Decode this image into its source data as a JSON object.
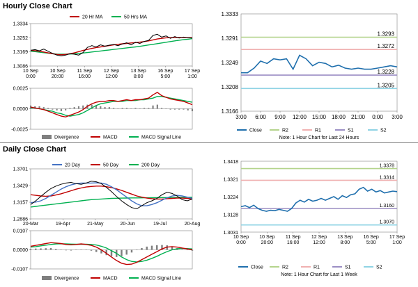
{
  "sections": {
    "hourly_title": "Hourly Close Chart",
    "daily_title": "Daily Close Chart"
  },
  "colors": {
    "price": "#000000",
    "ma_short": "#c00000",
    "ma_long": "#00b050",
    "ma_mid": "#4472c4",
    "close": "#1f6fad",
    "r2": "#b4d48c",
    "r1": "#f0b0b0",
    "s1": "#9b8ec4",
    "s2": "#8fd3e4",
    "divergence": "#7f7f7f",
    "macd": "#c00000",
    "signal": "#00b050"
  },
  "chart_data": [
    {
      "id": "hourly_price",
      "type": "line",
      "legend": [
        "20 Hr MA",
        "50 Hrs MA"
      ],
      "yticks": [
        "1.3334",
        "1.3252",
        "1.3169",
        "1.3086"
      ],
      "ylim": [
        1.3086,
        1.3334
      ],
      "xticks": [
        "10 Sep\n0:00",
        "10 Sep\n20:00",
        "11 Sep\n16:00",
        "12 Sep\n12:00",
        "13 Sep\n8:00",
        "16 Sep\n5:00",
        "17 Sep\n1:00"
      ],
      "price": [
        1.3178,
        1.3182,
        1.3175,
        1.3185,
        1.3172,
        1.316,
        1.315,
        1.3145,
        1.315,
        1.3158,
        1.3155,
        1.315,
        1.3165,
        1.3195,
        1.3205,
        1.3198,
        1.321,
        1.3202,
        1.3208,
        1.3212,
        1.3205,
        1.3215,
        1.3222,
        1.321,
        1.3225,
        1.3218,
        1.323,
        1.3236,
        1.3265,
        1.3272,
        1.3255,
        1.3262,
        1.3248,
        1.3258,
        1.325,
        1.3255,
        1.3252,
        1.325
      ],
      "ma20": [
        1.3178,
        1.3176,
        1.3172,
        1.3168,
        1.3163,
        1.3158,
        1.3154,
        1.3152,
        1.3154,
        1.3158,
        1.3163,
        1.317,
        1.3177,
        1.3183,
        1.3189,
        1.3194,
        1.3198,
        1.3202,
        1.3206,
        1.321,
        1.3213,
        1.3216,
        1.3218,
        1.3221,
        1.3223,
        1.3226,
        1.3229,
        1.3233,
        1.3239,
        1.3244,
        1.3248,
        1.3251,
        1.3252,
        1.3253,
        1.3253,
        1.3253,
        1.3252,
        1.3252
      ],
      "ma50": [
        1.3172,
        1.317,
        1.3167,
        1.3164,
        1.3161,
        1.3158,
        1.3156,
        1.3155,
        1.3155,
        1.3156,
        1.3158,
        1.316,
        1.3162,
        1.3165,
        1.3168,
        1.3171,
        1.3174,
        1.3177,
        1.318,
        1.3183,
        1.3186,
        1.3189,
        1.3192,
        1.3195,
        1.3198,
        1.3201,
        1.3205,
        1.3209,
        1.3213,
        1.3217,
        1.3221,
        1.3225,
        1.3229,
        1.3233,
        1.3237,
        1.324,
        1.3243,
        1.3246
      ]
    },
    {
      "id": "hourly_macd",
      "type": "line",
      "legend": [
        "Divergence",
        "MACD",
        "MACD Signal Line"
      ],
      "yticks": [
        "0.0025",
        "0.0000",
        "-0.0025"
      ],
      "ylim": [
        -0.0025,
        0.0025
      ],
      "macd": [
        0.0002,
        0.0001,
        0.0,
        -0.0001,
        -0.0003,
        -0.0005,
        -0.0007,
        -0.0009,
        -0.001,
        -0.0008,
        -0.0006,
        -0.0004,
        -0.0001,
        0.0003,
        0.0006,
        0.0008,
        0.0009,
        0.0009,
        0.001,
        0.001,
        0.0009,
        0.001,
        0.0011,
        0.001,
        0.0011,
        0.0011,
        0.0012,
        0.0013,
        0.0017,
        0.002,
        0.0016,
        0.0014,
        0.0012,
        0.0011,
        0.001,
        0.0009,
        0.0007,
        0.0005
      ],
      "signal": [
        0.0001,
        0.0001,
        0.0,
        -0.0001,
        -0.0002,
        -0.0003,
        -0.0005,
        -0.0006,
        -0.0008,
        -0.0009,
        -0.0008,
        -0.0007,
        -0.0005,
        -0.0002,
        0.0001,
        0.0004,
        0.0006,
        0.0007,
        0.0008,
        0.0009,
        0.0009,
        0.0009,
        0.001,
        0.001,
        0.001,
        0.0011,
        0.0011,
        0.0012,
        0.0013,
        0.0015,
        0.0015,
        0.0014,
        0.0013,
        0.0012,
        0.0011,
        0.001,
        0.0009,
        0.0008
      ],
      "divergence": [
        0.0004,
        0.0003,
        0.0003,
        0.0002,
        0.0001,
        -0.0001,
        -0.0002,
        -0.0003,
        -0.0002,
        0.0001,
        0.0002,
        0.0003,
        0.0004,
        0.0005,
        0.0005,
        0.0004,
        0.0003,
        0.0002,
        0.0002,
        0.0001,
        0.0,
        0.0001,
        0.0001,
        0.0,
        0.0001,
        0.0,
        0.0001,
        0.0001,
        0.0004,
        0.0005,
        0.0001,
        0.0,
        -0.0001,
        -0.0001,
        -0.0001,
        -0.0001,
        -0.0002,
        -0.0003
      ]
    },
    {
      "id": "hourly_close_24h",
      "type": "line",
      "legend": [
        "Close",
        "R2",
        "R1",
        "S1",
        "S2"
      ],
      "yticks": [
        "1.3333",
        "1.3291",
        "1.3249",
        "1.3208",
        "1.3166"
      ],
      "ylim": [
        1.3166,
        1.3333
      ],
      "xticks": [
        "3:00",
        "6:00",
        "9:00",
        "12:00",
        "15:00",
        "18:00",
        "21:00",
        "0:00",
        "3:00"
      ],
      "levels": {
        "R2": 1.3293,
        "R1": 1.3272,
        "S1": 1.3228,
        "S2": 1.3205
      },
      "level_labels": {
        "R2": "1.3293",
        "R1": "1.3272",
        "S1": "1.3228",
        "S2": "1.3205"
      },
      "close": [
        1.3232,
        1.3232,
        1.324,
        1.3252,
        1.3248,
        1.3256,
        1.3254,
        1.3256,
        1.3238,
        1.3262,
        1.3256,
        1.3244,
        1.325,
        1.3248,
        1.3242,
        1.3245,
        1.324,
        1.3238,
        1.324,
        1.3238,
        1.3238,
        1.324,
        1.3242,
        1.3244,
        1.3242
      ],
      "note": "Note: 1 Hour Chart for Last 24 Hours"
    },
    {
      "id": "daily_price",
      "type": "line",
      "legend": [
        "20 Day",
        "50 Day",
        "200 Day"
      ],
      "yticks": [
        "1.3701",
        "1.3429",
        "1.3157",
        "1.2886"
      ],
      "ylim": [
        1.2886,
        1.3701
      ],
      "xticks": [
        "20-Mar",
        "19-Apr",
        "21-May",
        "20-Jun",
        "19-Jul",
        "20-Aug"
      ],
      "price": [
        1.312,
        1.318,
        1.325,
        1.332,
        1.338,
        1.342,
        1.345,
        1.347,
        1.348,
        1.346,
        1.345,
        1.347,
        1.35,
        1.349,
        1.346,
        1.34,
        1.333,
        1.325,
        1.318,
        1.312,
        1.307,
        1.305,
        1.31,
        1.315,
        1.318,
        1.322,
        1.328,
        1.332,
        1.33,
        1.326,
        1.32,
        1.318,
        1.321
      ],
      "ma20": [
        1.315,
        1.316,
        1.318,
        1.322,
        1.327,
        1.332,
        1.337,
        1.341,
        1.344,
        1.346,
        1.347,
        1.347,
        1.347,
        1.3475,
        1.347,
        1.345,
        1.341,
        1.336,
        1.33,
        1.324,
        1.318,
        1.313,
        1.31,
        1.31,
        1.312,
        1.315,
        1.319,
        1.323,
        1.326,
        1.327,
        1.326,
        1.324,
        1.322
      ],
      "ma50": [
        1.328,
        1.327,
        1.326,
        1.3255,
        1.326,
        1.3275,
        1.3295,
        1.332,
        1.3345,
        1.337,
        1.339,
        1.3405,
        1.3415,
        1.342,
        1.342,
        1.341,
        1.3395,
        1.3375,
        1.335,
        1.332,
        1.329,
        1.326,
        1.324,
        1.3225,
        1.3215,
        1.321,
        1.321,
        1.3215,
        1.322,
        1.3225,
        1.3225,
        1.322,
        1.3215
      ],
      "ma200": [
        1.308,
        1.309,
        1.31,
        1.311,
        1.312,
        1.313,
        1.314,
        1.315,
        1.316,
        1.317,
        1.318,
        1.319,
        1.32,
        1.3205,
        1.321,
        1.3215,
        1.322,
        1.3222,
        1.3224,
        1.3226,
        1.3228,
        1.3228,
        1.3229,
        1.323,
        1.3231,
        1.3232,
        1.3233,
        1.3234,
        1.3235,
        1.3236,
        1.3237,
        1.3238,
        1.3239
      ]
    },
    {
      "id": "daily_macd",
      "type": "line",
      "legend": [
        "Divergence",
        "MACD",
        "MACD Signal Line"
      ],
      "yticks": [
        "0.0107",
        "0.0000",
        "-0.0107"
      ],
      "ylim": [
        -0.0107,
        0.0107
      ],
      "macd": [
        0.002,
        0.0025,
        0.003,
        0.0035,
        0.004,
        0.0038,
        0.0035,
        0.003,
        0.0028,
        0.003,
        0.0033,
        0.003,
        0.0025,
        0.0015,
        0.0,
        -0.002,
        -0.004,
        -0.006,
        -0.0075,
        -0.0082,
        -0.008,
        -0.007,
        -0.0055,
        -0.004,
        -0.0025,
        -0.001,
        0.0005,
        0.0015,
        0.0018,
        0.0015,
        0.001,
        0.0005,
        0.0
      ],
      "signal": [
        0.0015,
        0.0018,
        0.0022,
        0.0026,
        0.003,
        0.0033,
        0.0034,
        0.0033,
        0.0032,
        0.0031,
        0.0031,
        0.0031,
        0.003,
        0.0027,
        0.002,
        0.001,
        -0.0005,
        -0.002,
        -0.004,
        -0.0055,
        -0.0065,
        -0.0068,
        -0.0065,
        -0.0058,
        -0.0048,
        -0.0036,
        -0.0022,
        -0.001,
        0.0,
        0.0006,
        0.0008,
        0.0007,
        0.0005
      ],
      "divergence": [
        0.0005,
        0.0007,
        0.0008,
        0.0009,
        0.001,
        0.0005,
        0.0001,
        -0.0003,
        -0.0004,
        -0.0001,
        0.0002,
        -0.0001,
        -0.0005,
        -0.0012,
        -0.002,
        -0.003,
        -0.0035,
        -0.004,
        -0.0035,
        -0.0027,
        -0.0015,
        -0.0002,
        0.001,
        0.0018,
        0.0023,
        0.0026,
        0.0027,
        0.0025,
        0.0018,
        0.0009,
        0.0002,
        -0.0002,
        -0.0005
      ]
    },
    {
      "id": "hourly_close_week",
      "type": "line",
      "legend": [
        "Close",
        "R2",
        "R1",
        "S1",
        "S2"
      ],
      "yticks": [
        "1.3418",
        "1.3321",
        "1.3224",
        "1.3128",
        "1.3031"
      ],
      "ylim": [
        1.3031,
        1.3418
      ],
      "xticks": [
        "10 Sep\n0:00",
        "10 Sep\n20:00",
        "11 Sep\n16:00",
        "12 Sep\n12:00",
        "13 Sep\n8:00",
        "16 Sep\n5:00",
        "17 Sep\n1:00"
      ],
      "levels": {
        "R2": 1.3378,
        "R1": 1.3314,
        "S1": 1.316,
        "S2": 1.307
      },
      "level_labels": {
        "R2": "1.3378",
        "R1": "1.3314",
        "S1": "1.3160",
        "S2": "1.3070"
      },
      "close": [
        1.317,
        1.3175,
        1.3165,
        1.3178,
        1.316,
        1.315,
        1.3145,
        1.315,
        1.3148,
        1.3155,
        1.315,
        1.3145,
        1.316,
        1.319,
        1.3205,
        1.3195,
        1.321,
        1.32,
        1.3205,
        1.3215,
        1.3205,
        1.3215,
        1.3225,
        1.321,
        1.323,
        1.322,
        1.3235,
        1.324,
        1.3265,
        1.3275,
        1.3255,
        1.3265,
        1.325,
        1.3258,
        1.3245,
        1.325,
        1.3255,
        1.3252
      ],
      "note": "Note: 1 Hour Chart for Last 1 Week"
    }
  ]
}
